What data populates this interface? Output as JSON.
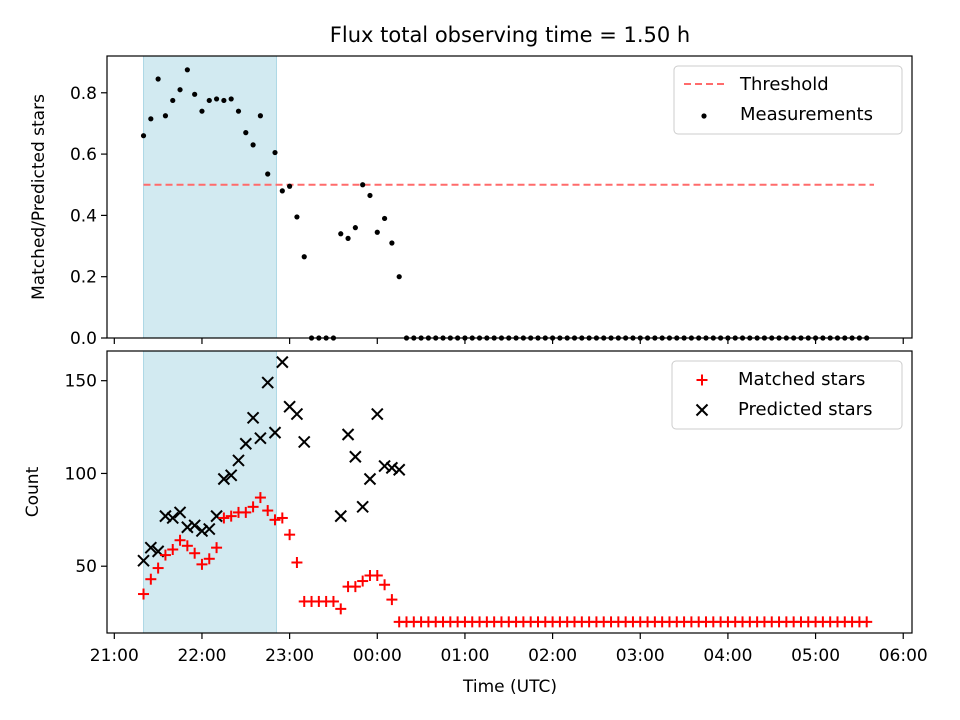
{
  "figure": {
    "title": "Flux total observing time = 1.50 h"
  },
  "colors": {
    "threshold": "#ff6b6b",
    "measurements": "#000000",
    "matched": "#ff0000",
    "predicted": "#000000",
    "shade": "#add8e6"
  },
  "chart_data": [
    {
      "type": "scatter",
      "ylabel": "Matched/Predicted stars",
      "ylim": [
        0,
        0.92
      ],
      "yticks": [
        0.0,
        0.2,
        0.4,
        0.6,
        0.8
      ],
      "ytick_labels": [
        "0.0",
        "0.2",
        "0.4",
        "0.6",
        "0.8"
      ],
      "xlim": [
        "21:00",
        "06:00"
      ],
      "shaded_span": [
        "21:20",
        "22:51"
      ],
      "legend": {
        "position": "upper-right",
        "entries": [
          "Threshold",
          "Measurements"
        ]
      },
      "threshold": {
        "name": "Threshold",
        "value": 0.5,
        "x_range": [
          "21:20",
          "05:40"
        ],
        "style": "dashed"
      },
      "series": [
        {
          "name": "Measurements",
          "style": "dot",
          "x": [
            "21:20",
            "21:25",
            "21:30",
            "21:35",
            "21:40",
            "21:45",
            "21:50",
            "21:55",
            "22:00",
            "22:05",
            "22:10",
            "22:15",
            "22:20",
            "22:25",
            "22:30",
            "22:35",
            "22:40",
            "22:45",
            "22:50",
            "22:55",
            "23:00",
            "23:05",
            "23:10",
            "23:15",
            "23:20",
            "23:25",
            "23:30",
            "23:35",
            "23:40",
            "23:45",
            "23:50",
            "23:55",
            "00:00",
            "00:05",
            "00:10",
            "00:15"
          ],
          "y": [
            0.66,
            0.715,
            0.845,
            0.725,
            0.775,
            0.81,
            0.875,
            0.795,
            0.74,
            0.775,
            0.78,
            0.775,
            0.78,
            0.74,
            0.67,
            0.63,
            0.725,
            0.535,
            0.605,
            0.48,
            0.495,
            0.395,
            0.265,
            0,
            0,
            0,
            0,
            0.34,
            0.325,
            0.36,
            0.5,
            0.465,
            0.345,
            0.39,
            0.31,
            0.2
          ]
        },
        {
          "name": "Measurements (zero)",
          "style": "dot",
          "x_start": "00:20",
          "x_step_minutes": 5,
          "count": 64,
          "y": 0
        }
      ],
      "xticks": [
        "21:00",
        "22:00",
        "23:00",
        "00:00",
        "01:00",
        "02:00",
        "03:00",
        "04:00",
        "05:00",
        "06:00"
      ]
    },
    {
      "type": "scatter",
      "xlabel": "Time (UTC)",
      "ylabel": "Count",
      "ylim": [
        14,
        166
      ],
      "yticks": [
        50,
        100,
        150
      ],
      "ytick_labels": [
        "50",
        "100",
        "150"
      ],
      "xlim": [
        "21:00",
        "06:00"
      ],
      "shaded_span": [
        "21:20",
        "22:51"
      ],
      "legend": {
        "position": "upper-right",
        "entries": [
          "Matched stars",
          "Predicted stars"
        ]
      },
      "xticks": [
        "21:00",
        "22:00",
        "23:00",
        "00:00",
        "01:00",
        "02:00",
        "03:00",
        "04:00",
        "05:00",
        "06:00"
      ],
      "xtick_labels": [
        "21:00",
        "22:00",
        "23:00",
        "00:00",
        "01:00",
        "02:00",
        "03:00",
        "04:00",
        "05:00",
        "06:00"
      ],
      "series": [
        {
          "name": "Predicted stars",
          "style": "x",
          "x": [
            "21:20",
            "21:25",
            "21:30",
            "21:35",
            "21:40",
            "21:45",
            "21:50",
            "21:55",
            "22:00",
            "22:05",
            "22:10",
            "22:15",
            "22:20",
            "22:25",
            "22:30",
            "22:35",
            "22:40",
            "22:45",
            "22:50",
            "22:55",
            "23:00",
            "23:05",
            "23:10",
            "23:35",
            "23:40",
            "23:45",
            "23:50",
            "23:55",
            "00:00",
            "00:05",
            "00:10",
            "00:15"
          ],
          "y": [
            53,
            60,
            58,
            77,
            76,
            79,
            71,
            72,
            69,
            70,
            77,
            97,
            99,
            107,
            116,
            130,
            119,
            149,
            122,
            160,
            136,
            132,
            117,
            77,
            121,
            109,
            82,
            97,
            132,
            104,
            103,
            102
          ]
        },
        {
          "name": "Matched stars",
          "style": "plus",
          "x": [
            "21:20",
            "21:25",
            "21:30",
            "21:35",
            "21:40",
            "21:45",
            "21:50",
            "21:55",
            "22:00",
            "22:05",
            "22:10",
            "22:15",
            "22:20",
            "22:25",
            "22:30",
            "22:35",
            "22:40",
            "22:45",
            "22:50",
            "22:55",
            "23:00",
            "23:05",
            "23:10",
            "23:15",
            "23:20",
            "23:25",
            "23:30",
            "23:35",
            "23:40",
            "23:45",
            "23:50",
            "23:55",
            "00:00",
            "00:05",
            "00:10",
            "00:15"
          ],
          "y": [
            35,
            43,
            49,
            56,
            59,
            64,
            61,
            57,
            51,
            54,
            60,
            76,
            77,
            79,
            79,
            82,
            87,
            80,
            75,
            76,
            67,
            52,
            31,
            31,
            31,
            31,
            31,
            27,
            39,
            39,
            42,
            45,
            45,
            40,
            32,
            20
          ]
        },
        {
          "name": "Matched stars (floor)",
          "style": "plus",
          "x_start": "00:20",
          "x_step_minutes": 5,
          "count": 64,
          "y": 20
        }
      ]
    }
  ]
}
